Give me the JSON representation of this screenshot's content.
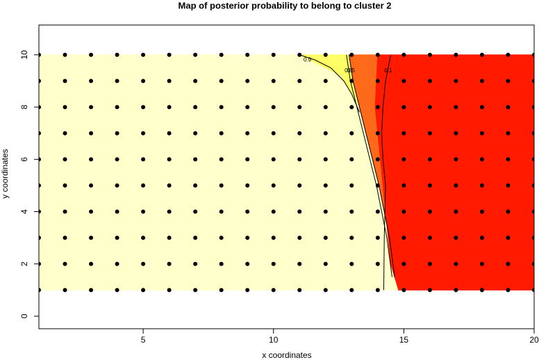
{
  "chart_data": {
    "type": "scatter",
    "title": "Map of posterior probability to belong to cluster  2",
    "x_label": "x coordinates",
    "y_label": "y coordinates",
    "xlim": [
      1,
      20
    ],
    "ylim": [
      -0.48,
      11.14
    ],
    "xticks": [
      5,
      10,
      15,
      20
    ],
    "yticks": [
      0,
      2,
      4,
      6,
      8,
      10
    ],
    "grid_x": [
      1,
      2,
      3,
      4,
      5,
      6,
      7,
      8,
      9,
      10,
      11,
      12,
      13,
      14,
      15,
      16,
      17,
      18,
      19,
      20
    ],
    "grid_y": [
      1,
      2,
      3,
      4,
      5,
      6,
      7,
      8,
      9,
      10
    ],
    "point_color": "#000000",
    "regions": [
      {
        "color": "#ffffcc",
        "x": [
          1,
          12.9,
          13.05,
          13.3,
          13.55,
          13.8,
          14.05,
          14.25,
          14.45,
          14.8,
          1
        ],
        "y": [
          10,
          10,
          9,
          8,
          7,
          6,
          5,
          4,
          3,
          1,
          1
        ]
      },
      {
        "color": "#ffff66",
        "x": [
          11.0,
          12.9,
          13.05,
          13.3,
          12.6
        ],
        "y": [
          10,
          10,
          9,
          8,
          9.2
        ]
      },
      {
        "color": "#ff6a1a",
        "x": [
          12.9,
          14.0,
          13.9,
          14.1,
          14.3,
          14.5,
          14.8,
          14.45,
          14.25,
          14.05,
          13.8,
          13.55,
          13.3,
          13.05
        ],
        "y": [
          10,
          10,
          8,
          6,
          4,
          2,
          1,
          3,
          4,
          5,
          6,
          7,
          8,
          9
        ]
      },
      {
        "color": "#ff1a00",
        "x": [
          14.0,
          20,
          20,
          14.8,
          14.5,
          14.3,
          14.1,
          13.9
        ],
        "y": [
          10,
          10,
          1,
          1,
          2,
          4,
          6,
          8
        ]
      }
    ],
    "contours": [
      {
        "level": 0.9,
        "x": [
          11.0,
          11.6,
          12.2,
          12.7,
          13.0,
          13.3
        ],
        "y": [
          10,
          9.8,
          9.5,
          9.0,
          8.5,
          7.8
        ]
      },
      {
        "level": 0.8,
        "x": [
          12.8,
          12.95,
          13.2,
          13.45,
          13.7,
          13.95,
          14.15,
          14.35,
          14.55
        ],
        "y": [
          10,
          9,
          8,
          7,
          6,
          5,
          4,
          3,
          1.5
        ]
      },
      {
        "level": 0.5,
        "x": [
          12.9,
          13.05,
          13.3,
          13.55,
          13.8,
          14.05,
          14.25,
          14.45,
          14.65
        ],
        "y": [
          10,
          9,
          8,
          7,
          6,
          5,
          4,
          3,
          1.5
        ]
      },
      {
        "level": 0.1,
        "x": [
          14.5,
          14.3,
          14.2,
          14.15,
          14.2,
          14.3,
          14.25,
          14.23
        ],
        "y": [
          10,
          9,
          8,
          7,
          6,
          5,
          3,
          1
        ]
      }
    ]
  }
}
